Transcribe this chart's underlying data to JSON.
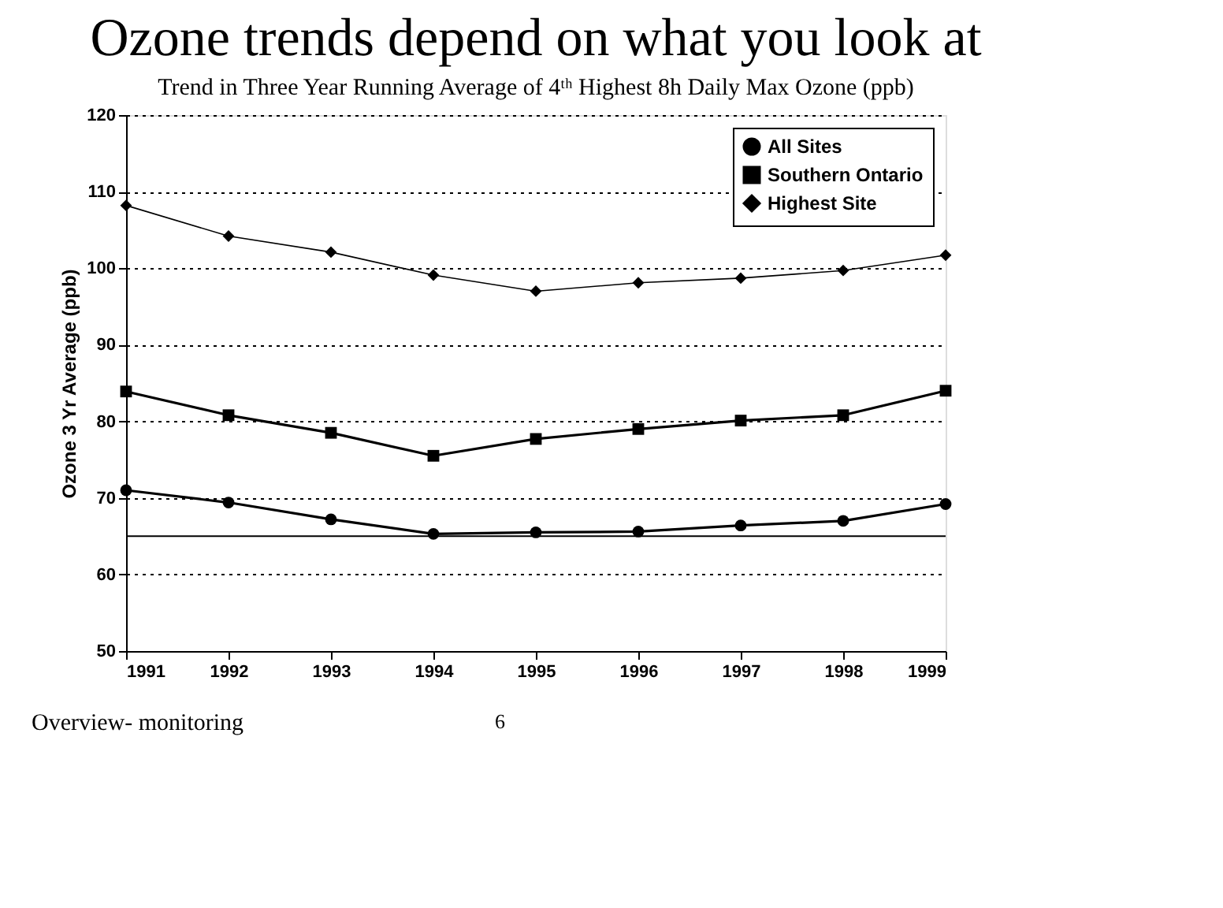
{
  "chart_data": {
    "type": "line",
    "title": "Ozone trends depend on what you look at",
    "subtitle": "Trend in Three Year Running Average of 4ᵗʰ Highest 8h Daily Max Ozone (ppb)",
    "ylabel": "Ozone 3 Yr Average (ppb)",
    "x": [
      1991,
      1992,
      1993,
      1994,
      1995,
      1996,
      1997,
      1998,
      1999
    ],
    "series": [
      {
        "name": "All Sites",
        "color": "#000000",
        "marker": "circle",
        "values": [
          71.0,
          69.4,
          67.2,
          65.3,
          65.5,
          65.6,
          66.4,
          67.0,
          69.2
        ]
      },
      {
        "name": "Southern Ontario",
        "color": "#000000",
        "marker": "square",
        "values": [
          83.9,
          80.8,
          78.5,
          75.5,
          77.7,
          79.0,
          80.1,
          80.8,
          84.0
        ]
      },
      {
        "name": "Highest Site",
        "color": "#000000",
        "marker": "diamond",
        "values": [
          108.2,
          104.2,
          102.1,
          99.1,
          97.0,
          98.1,
          98.7,
          99.7,
          101.7
        ]
      }
    ],
    "xlim": [
      1991,
      1999
    ],
    "xticks": [
      1991,
      1992,
      1993,
      1994,
      1995,
      1996,
      1997,
      1998,
      1999
    ],
    "ylim": [
      50,
      120
    ],
    "yticks": [
      50,
      60,
      70,
      80,
      90,
      100,
      110,
      120
    ],
    "ref_lines": [
      {
        "axis": "y",
        "value": 65,
        "color": "#000000",
        "line_style": "solid"
      }
    ],
    "grid": "y",
    "line_style": "solid",
    "legend": "top right",
    "annotations": [
      "Overview- monitoring",
      "6"
    ]
  }
}
